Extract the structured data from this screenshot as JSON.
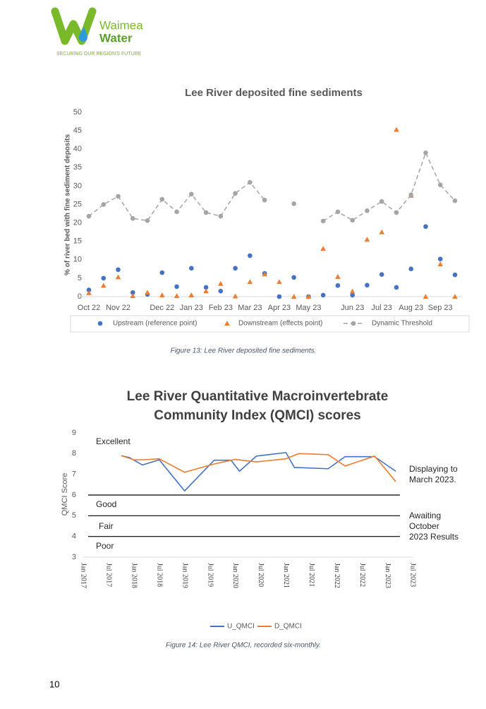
{
  "header": {
    "logo_lines": [
      "Waimea",
      "Water"
    ],
    "tagline": "SECURING OUR REGION'S FUTURE"
  },
  "chart_data": [
    {
      "type": "scatter",
      "title": "Lee River deposited fine sediments",
      "y_label": "% of river bed with fine sediment deposits",
      "categories": [
        "Oct 22",
        null,
        "Nov 22",
        null,
        null,
        "Dec 22",
        null,
        "Jan 23",
        null,
        "Feb 23",
        null,
        "Mar 23",
        null,
        "Apr 23",
        null,
        "May 23",
        null,
        null,
        "Jun 23",
        null,
        "Jul 23",
        null,
        "Aug 23",
        null,
        "Sep 23",
        null
      ],
      "series": [
        {
          "name": "Upstream (reference point)",
          "color": "#4472c4",
          "marker": "circle",
          "line": "none",
          "values": [
            1.8,
            5,
            7.3,
            1.1,
            0.6,
            6.5,
            2.7,
            7.7,
            2.5,
            1.5,
            7.7,
            11.1,
            6.3,
            0,
            5.2,
            0,
            0.4,
            3,
            0.4,
            3.1,
            6,
            2.5,
            7.5,
            19,
            10.2,
            5.9
          ]
        },
        {
          "name": "Downstream (effects point)",
          "color": "#ed7d31",
          "marker": "triangle",
          "line": "none",
          "values": [
            1,
            3,
            5.3,
            0.2,
            1.1,
            0.4,
            0.2,
            0.4,
            1.5,
            3.5,
            0.1,
            4,
            6.1,
            4,
            0,
            0,
            13,
            5.4,
            1.4,
            15.5,
            17.5,
            45.3,
            27.4,
            0,
            8.8,
            0
          ]
        },
        {
          "name": "Dynamic Threshold",
          "color": "#a5a5a5",
          "marker": "circle",
          "line": "dashed",
          "values": [
            21.8,
            25,
            27.2,
            21.2,
            20.6,
            26.4,
            23,
            27.8,
            22.8,
            21.8,
            28,
            31,
            26.2,
            null,
            25.2,
            null,
            20.5,
            23,
            20.7,
            23.3,
            25.8,
            22.8,
            27.6,
            39,
            30.3,
            26
          ]
        }
      ],
      "ylim": [
        0,
        50
      ],
      "yticks": [
        0,
        5,
        10,
        15,
        20,
        25,
        30,
        35,
        40,
        45,
        50
      ],
      "grid": false,
      "legend": "bottom"
    },
    {
      "type": "line",
      "title": "Lee River Quantitative Macroinvertebrate Community Index (QMCI) scores",
      "y_label": "QMCI Score",
      "series": [
        {
          "name": "U_QMCI",
          "color": "#4472c4",
          "x": [
            "2017-10",
            "2017-12",
            "2018-03",
            "2018-07",
            "2019-01",
            "2019-08",
            "2019-12",
            "2020-02",
            "2020-06",
            "2021-01",
            "2021-03",
            "2021-11",
            "2022-03",
            "2022-10",
            "2023-03"
          ],
          "values": [
            7.9,
            7.8,
            7.45,
            7.7,
            6.2,
            7.68,
            7.68,
            7.15,
            7.88,
            8.05,
            7.33,
            7.27,
            7.85,
            7.85,
            7.15
          ]
        },
        {
          "name": "D_QMCI",
          "color": "#ed7d31",
          "x": [
            "2017-10",
            "2018-01",
            "2018-03",
            "2018-07",
            "2019-01",
            "2019-08",
            "2020-01",
            "2020-06",
            "2021-01",
            "2021-04",
            "2021-11",
            "2022-03",
            "2022-10",
            "2023-03"
          ],
          "values": [
            7.9,
            7.7,
            7.7,
            7.75,
            7.1,
            7.5,
            7.72,
            7.6,
            7.75,
            8.0,
            7.95,
            7.4,
            7.88,
            6.65
          ]
        }
      ],
      "xlim": [
        "2017-01",
        "2023-07"
      ],
      "xticks": [
        {
          "value": "2017-01",
          "label": "Jan 2017"
        },
        {
          "value": "2017-07",
          "label": "Jul 2017"
        },
        {
          "value": "2018-01",
          "label": "Jan 2018"
        },
        {
          "value": "2018-07",
          "label": "Jul 2018"
        },
        {
          "value": "2019-01",
          "label": "Jan 2019"
        },
        {
          "value": "2019-07",
          "label": "Jul 2019"
        },
        {
          "value": "2020-01",
          "label": "Jan 2020"
        },
        {
          "value": "2020-07",
          "label": "Jul 2020"
        },
        {
          "value": "2021-01",
          "label": "Jan 2021"
        },
        {
          "value": "2021-07",
          "label": "Jul 2021"
        },
        {
          "value": "2022-01",
          "label": "Jan 2022"
        },
        {
          "value": "2022-07",
          "label": "Jul 2022"
        },
        {
          "value": "2023-01",
          "label": "Jan 2023"
        },
        {
          "value": "2023-07",
          "label": "Jul 2023"
        }
      ],
      "ylim": [
        3,
        9
      ],
      "yticks": [
        3,
        4,
        5,
        6,
        7,
        8,
        9
      ],
      "hlines": [
        6,
        5,
        4
      ],
      "hline_color": "#000000",
      "bands": [
        "Excellent",
        "Good",
        "Fair",
        "Poor"
      ],
      "annotations": [
        "Displaying to March 2023.",
        "Awaiting October 2023 Results"
      ],
      "grid": false,
      "legend": "bottom"
    }
  ],
  "captions": [
    "Figure 13: Lee River deposited fine sediments.",
    "Figure 14: Lee River QMCI, recorded six-monthly."
  ],
  "page_number": 10
}
